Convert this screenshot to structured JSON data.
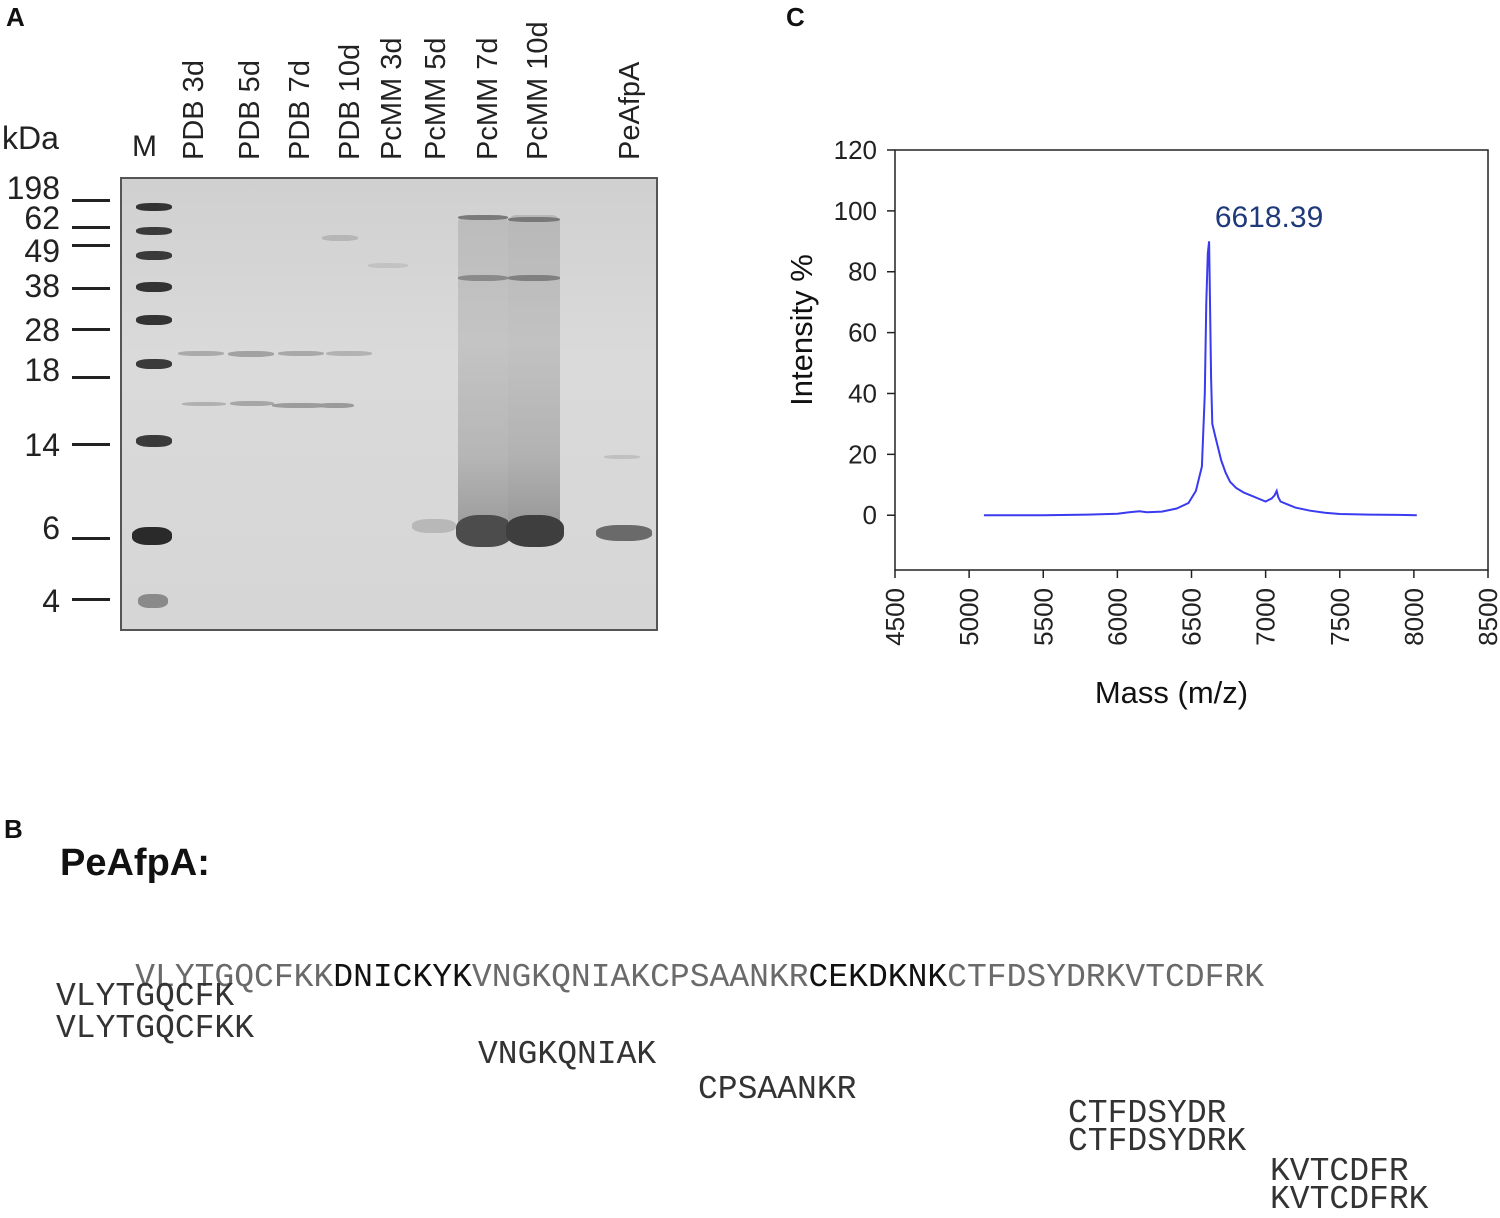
{
  "panels": {
    "a": "A",
    "b": "B",
    "c": "C"
  },
  "gel": {
    "kda_label": "kDa",
    "marker_label": "M",
    "marker_sizes": [
      "198",
      "62",
      "49",
      "38",
      "28",
      "18",
      "14",
      "6",
      "4"
    ],
    "lanes": [
      "PDB 3d",
      "PDB 5d",
      "PDB 7d",
      "PDB 10d",
      "PcMM 3d",
      "PcMM 5d",
      "PcMM 7d",
      "PcMM 10d",
      "PeAfpA"
    ]
  },
  "sequence": {
    "title": "PeAfpA:",
    "segments": [
      {
        "text": "VLYTGQCFKK",
        "style": "lt"
      },
      {
        "text": "DNICKYK",
        "style": "hl"
      },
      {
        "text": "VNGKQNIAKCPSAANKR",
        "style": "lt"
      },
      {
        "text": "CEKDKNK",
        "style": "hl"
      },
      {
        "text": "CTFDSYDRKVTCDFRK",
        "style": "lt"
      }
    ],
    "peptides": [
      "VLYTGQCFK",
      "VLYTGQCFKK",
      "VNGKQNIAK",
      "CPSAANKR",
      "CTFDSYDR",
      "CTFDSYDRK",
      "KVTCDFR",
      "KVTCDFRK"
    ]
  },
  "chart_data": {
    "type": "line",
    "title": "",
    "xlabel": "Mass (m/z)",
    "ylabel": "Intensity %",
    "xlim": [
      4500,
      8500
    ],
    "ylim": [
      -18,
      120
    ],
    "xticks": [
      4500,
      5000,
      5500,
      6000,
      6500,
      7000,
      7500,
      8000,
      8500
    ],
    "yticks": [
      0,
      20,
      40,
      60,
      80,
      100,
      120
    ],
    "grid": false,
    "line_color": "#3a3af0",
    "annotations": [
      {
        "text": "6618.39",
        "x": 6618.39,
        "y": 100,
        "color": "#1f3a7a"
      }
    ],
    "series": [
      {
        "x": [
          5100,
          5500,
          5800,
          6000,
          6080,
          6150,
          6200,
          6300,
          6400,
          6480,
          6530,
          6570,
          6590,
          6600,
          6610,
          6618.39,
          6625,
          6632,
          6640,
          6660,
          6680,
          6700,
          6730,
          6760,
          6800,
          6850,
          6900,
          6950,
          7000,
          7040,
          7060,
          7075,
          7085,
          7100,
          7150,
          7200,
          7300,
          7400,
          7500,
          7700,
          7900,
          8020
        ],
        "y": [
          0,
          0,
          0.2,
          0.5,
          1,
          1.3,
          1,
          1.2,
          2.2,
          4,
          8,
          16,
          40,
          70,
          86,
          90,
          70,
          45,
          30,
          26,
          22,
          18,
          14,
          11,
          9,
          7.5,
          6.5,
          5.5,
          4.5,
          5.5,
          6.5,
          8,
          6,
          4.5,
          3.5,
          2.5,
          1.5,
          0.8,
          0.4,
          0.2,
          0.1,
          0
        ]
      }
    ]
  }
}
